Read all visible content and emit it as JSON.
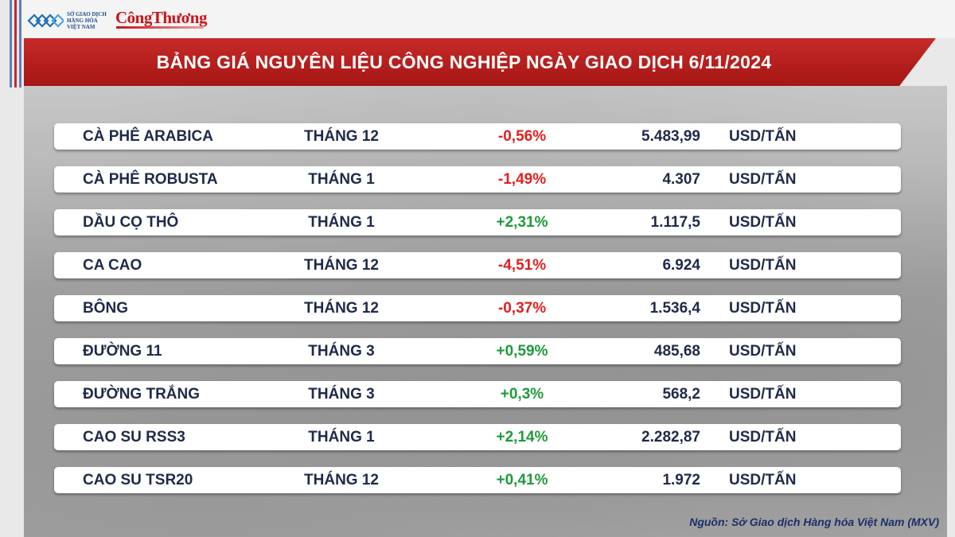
{
  "header": {
    "logo_sgd_lines": [
      "SỞ GIAO DỊCH",
      "HÀNG HÓA",
      "VIỆT NAM"
    ],
    "logo_congthuong": "CôngThương",
    "title": "BẢNG GIÁ NGUYÊN LIỆU CÔNG NGHIỆP NGÀY GIAO DỊCH 6/11/2024"
  },
  "colors": {
    "banner": "#b71c1a",
    "negative": "#e02020",
    "positive": "#1f9a3a",
    "text": "#1f2a4a"
  },
  "table": {
    "rows": [
      {
        "name": "CÀ PHÊ ARABICA",
        "month": "THÁNG 12",
        "change": "-0,56%",
        "direction": "neg",
        "price": "5.483,99",
        "unit": "USD/TẤN"
      },
      {
        "name": "CÀ PHÊ ROBUSTA",
        "month": "THÁNG 1",
        "change": "-1,49%",
        "direction": "neg",
        "price": "4.307",
        "unit": "USD/TẤN"
      },
      {
        "name": "DẦU CỌ THÔ",
        "month": "THÁNG 1",
        "change": "+2,31%",
        "direction": "pos",
        "price": "1.117,5",
        "unit": "USD/TẤN"
      },
      {
        "name": "CA CAO",
        "month": "THÁNG 12",
        "change": "-4,51%",
        "direction": "neg",
        "price": "6.924",
        "unit": "USD/TẤN"
      },
      {
        "name": "BÔNG",
        "month": "THÁNG 12",
        "change": "-0,37%",
        "direction": "neg",
        "price": "1.536,4",
        "unit": "USD/TẤN"
      },
      {
        "name": "ĐƯỜNG 11",
        "month": "THÁNG 3",
        "change": "+0,59%",
        "direction": "pos",
        "price": "485,68",
        "unit": "USD/TẤN"
      },
      {
        "name": "ĐƯỜNG TRẮNG",
        "month": "THÁNG 3",
        "change": "+0,3%",
        "direction": "pos",
        "price": "568,2",
        "unit": "USD/TẤN"
      },
      {
        "name": "CAO SU RSS3",
        "month": "THÁNG 1",
        "change": "+2,14%",
        "direction": "pos",
        "price": "2.282,87",
        "unit": "USD/TẤN"
      },
      {
        "name": "CAO SU TSR20",
        "month": "THÁNG 12",
        "change": "+0,41%",
        "direction": "pos",
        "price": "1.972",
        "unit": "USD/TẤN"
      }
    ]
  },
  "footer": {
    "source": "Nguồn: Sở Giao dịch Hàng hóa Việt Nam (MXV)"
  }
}
